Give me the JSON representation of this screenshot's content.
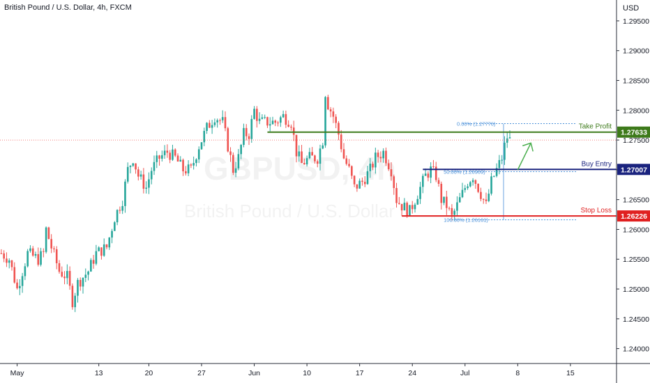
{
  "header": {
    "symbol_title": "British Pound / U.S. Dollar, 4h, FXCM",
    "currency": "USD"
  },
  "watermark": {
    "ticker": "GBPUSD, 4h",
    "name": "British Pound / U.S. Dollar"
  },
  "chart_data": {
    "type": "candlestick",
    "ylim": [
      1.2375,
      1.2985
    ],
    "y_ticks": [
      1.24,
      1.245,
      1.25,
      1.255,
      1.26,
      1.265,
      1.27,
      1.275,
      1.28,
      1.285,
      1.29,
      1.295
    ],
    "y_tick_labels": [
      "1.24000",
      "1.24500",
      "1.25000",
      "1.25500",
      "1.26000",
      "1.26500",
      "1.27000",
      "1.27500",
      "1.28000",
      "1.28500",
      "1.29000",
      "1.29500"
    ],
    "x_tick_labels": [
      "May",
      "13",
      "20",
      "27",
      "Jun",
      "10",
      "17",
      "24",
      "Jul",
      "8",
      "15"
    ],
    "x_tick_bars": [
      6,
      37,
      56,
      76,
      96,
      116,
      136,
      156,
      176,
      196,
      216
    ],
    "total_bars": 234,
    "last_price": 1.275,
    "grid": false,
    "colors": {
      "up": "#26a69a",
      "down": "#ef5350",
      "take_profit": "#3d7a1a",
      "buy_entry": "#1a237e",
      "stop_loss": "#e02020",
      "fib": "#4a90d9",
      "arrow": "#4caf50"
    },
    "path": [
      [
        0,
        1.256
      ],
      [
        3,
        1.255
      ],
      [
        6,
        1.25
      ],
      [
        10,
        1.256
      ],
      [
        14,
        1.255
      ],
      [
        16,
        1.256
      ],
      [
        17,
        1.26
      ],
      [
        19,
        1.257
      ],
      [
        22,
        1.253
      ],
      [
        25,
        1.252
      ],
      [
        27,
        1.248
      ],
      [
        29,
        1.251
      ],
      [
        33,
        1.253
      ],
      [
        36,
        1.256
      ],
      [
        40,
        1.257
      ],
      [
        43,
        1.262
      ],
      [
        46,
        1.265
      ],
      [
        48,
        1.27
      ],
      [
        50,
        1.272
      ],
      [
        52,
        1.269
      ],
      [
        55,
        1.267
      ],
      [
        57,
        1.27
      ],
      [
        60,
        1.272
      ],
      [
        63,
        1.273
      ],
      [
        66,
        1.272
      ],
      [
        69,
        1.27
      ],
      [
        72,
        1.27
      ],
      [
        75,
        1.274
      ],
      [
        78,
        1.277
      ],
      [
        81,
        1.279
      ],
      [
        84,
        1.278
      ],
      [
        86,
        1.274
      ],
      [
        88,
        1.27
      ],
      [
        90,
        1.272
      ],
      [
        92,
        1.276
      ],
      [
        94,
        1.276
      ],
      [
        96,
        1.28
      ],
      [
        98,
        1.278
      ],
      [
        101,
        1.278
      ],
      [
        104,
        1.278
      ],
      [
        107,
        1.279
      ],
      [
        110,
        1.278
      ],
      [
        112,
        1.273
      ],
      [
        114,
        1.271
      ],
      [
        117,
        1.272
      ],
      [
        120,
        1.272
      ],
      [
        122,
        1.275
      ],
      [
        123,
        1.283
      ],
      [
        124,
        1.281
      ],
      [
        126,
        1.279
      ],
      [
        128,
        1.276
      ],
      [
        130,
        1.272
      ],
      [
        132,
        1.27
      ],
      [
        134,
        1.267
      ],
      [
        137,
        1.268
      ],
      [
        140,
        1.27
      ],
      [
        142,
        1.272
      ],
      [
        145,
        1.273
      ],
      [
        148,
        1.27
      ],
      [
        150,
        1.265
      ],
      [
        152,
        1.264
      ],
      [
        155,
        1.263
      ],
      [
        158,
        1.266
      ],
      [
        161,
        1.269
      ],
      [
        163,
        1.27
      ],
      [
        165,
        1.269
      ],
      [
        167,
        1.265
      ],
      [
        169,
        1.264
      ],
      [
        171,
        1.262
      ],
      [
        173,
        1.264
      ],
      [
        175,
        1.266
      ],
      [
        177,
        1.268
      ],
      [
        179,
        1.269
      ],
      [
        182,
        1.266
      ],
      [
        184,
        1.264
      ],
      [
        186,
        1.268
      ],
      [
        188,
        1.27
      ],
      [
        190,
        1.272
      ],
      [
        191,
        1.274
      ],
      [
        192,
        1.2755
      ],
      [
        193,
        1.275
      ]
    ],
    "levels": [
      {
        "name": "Take Profit",
        "label": "Take Profit",
        "price": 1.27633,
        "price_label": "1.27633",
        "from_bar": 101,
        "color": "#3d7a1a"
      },
      {
        "name": "Buy Entry",
        "label": "Buy Entry",
        "price": 1.27007,
        "price_label": "1.27007",
        "from_bar": 160,
        "color": "#1a237e"
      },
      {
        "name": "Stop Loss",
        "label": "Stop Loss",
        "price": 1.26226,
        "price_label": "1.26226",
        "from_bar": 152,
        "color": "#e02020"
      }
    ],
    "fib_levels": [
      {
        "label": "0.00% (1.27776)",
        "price": 1.27776,
        "from_bar": 175
      },
      {
        "label": "50.00% (1.26969)",
        "price": 1.26969,
        "from_bar": 170
      },
      {
        "label": "100.00% (1.26161)",
        "price": 1.26161,
        "from_bar": 170
      }
    ],
    "arrow": {
      "from_bar": 196,
      "from_price": 1.27,
      "to_bar": 201,
      "to_price": 1.2745
    }
  }
}
